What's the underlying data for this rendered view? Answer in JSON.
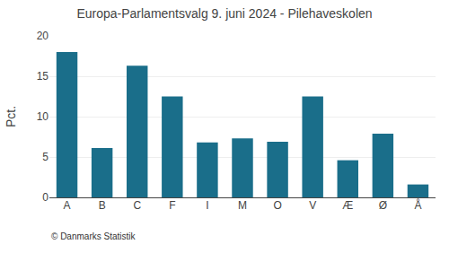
{
  "chart_data": {
    "type": "bar",
    "title": "Europa-Parlamentsvalg 9. juni 2024 - Pilehaveskolen",
    "categories": [
      "A",
      "B",
      "C",
      "F",
      "I",
      "M",
      "O",
      "V",
      "Æ",
      "Ø",
      "Å"
    ],
    "values": [
      18.0,
      6.1,
      16.3,
      12.5,
      6.8,
      7.3,
      6.9,
      12.5,
      4.6,
      7.9,
      1.6
    ],
    "color": "#1a6e8a",
    "ylabel": "Pct.",
    "ylim": [
      0,
      20
    ],
    "yticks": [
      0,
      5,
      10,
      15,
      20
    ],
    "grid": true,
    "footer": "© Danmarks Statistik"
  }
}
